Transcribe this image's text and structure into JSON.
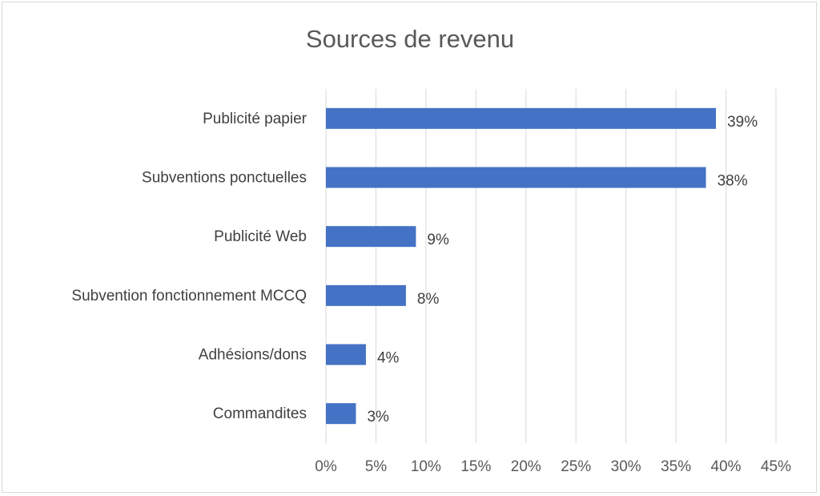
{
  "chart_data": {
    "type": "bar",
    "orientation": "horizontal",
    "title": "Sources de revenu",
    "categories": [
      "Publicité papier",
      "Subventions ponctuelles",
      "Publicité Web",
      "Subvention fonctionnement MCCQ",
      "Adhésions/dons",
      "Commandites"
    ],
    "values": [
      39,
      38,
      9,
      8,
      4,
      3
    ],
    "data_labels": [
      "39%",
      "38%",
      "9%",
      "8%",
      "4%",
      "3%"
    ],
    "xlim": [
      0,
      45
    ],
    "x_ticks": [
      0,
      5,
      10,
      15,
      20,
      25,
      30,
      35,
      40,
      45
    ],
    "x_tick_labels": [
      "0%",
      "5%",
      "10%",
      "15%",
      "20%",
      "25%",
      "30%",
      "35%",
      "40%",
      "45%"
    ],
    "grid": true,
    "bar_color": "#4472c4",
    "grid_color": "#d9d9d9",
    "text_color": "#404040"
  }
}
